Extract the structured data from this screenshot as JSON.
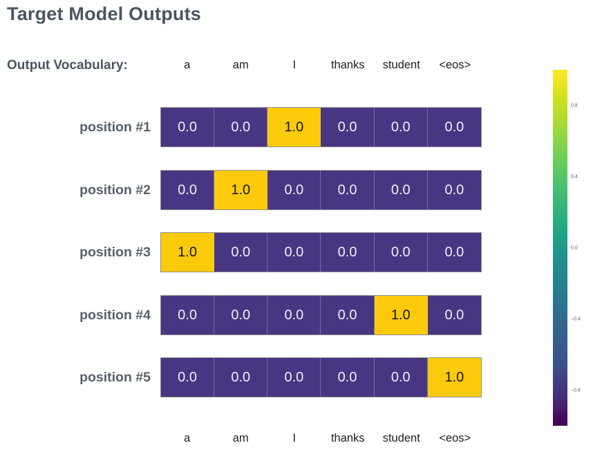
{
  "title": "Target Model Outputs",
  "vocab_label": "Output Vocabulary:",
  "colors": {
    "title_text": "#4a5560",
    "label_text": "#57606b",
    "vocab_text": "#1d1d1d",
    "cell_low": "#483682",
    "cell_high": "#fbca0a",
    "cell_text_low": "#f3eef9",
    "cell_text_high": "#161616",
    "cell_divider": "rgba(255,255,255,0.28)",
    "grid_border": "#8f8f8f"
  },
  "chart_data": {
    "type": "heatmap",
    "title": "Target Model Outputs",
    "columns": [
      "a",
      "am",
      "I",
      "thanks",
      "student",
      "<eos>"
    ],
    "rows": [
      {
        "label": "position #1",
        "values": [
          0.0,
          0.0,
          1.0,
          0.0,
          0.0,
          0.0
        ]
      },
      {
        "label": "position #2",
        "values": [
          0.0,
          1.0,
          0.0,
          0.0,
          0.0,
          0.0
        ]
      },
      {
        "label": "position #3",
        "values": [
          1.0,
          0.0,
          0.0,
          0.0,
          0.0,
          0.0
        ]
      },
      {
        "label": "position #4",
        "values": [
          0.0,
          0.0,
          0.0,
          0.0,
          1.0,
          0.0
        ]
      },
      {
        "label": "position #5",
        "values": [
          0.0,
          0.0,
          0.0,
          0.0,
          0.0,
          1.0
        ]
      }
    ],
    "value_format": "one_decimal",
    "colormap": "viridis",
    "grid": false,
    "colorbar": {
      "position": "right",
      "range": [
        -1.0,
        1.0
      ],
      "ticks": [
        {
          "value": 0.8,
          "label": "0.8"
        },
        {
          "value": 0.4,
          "label": "0.4"
        },
        {
          "value": 0.0,
          "label": "0.0"
        },
        {
          "value": -0.4,
          "label": "−0.4"
        },
        {
          "value": -0.8,
          "label": "−0.8"
        }
      ]
    }
  }
}
